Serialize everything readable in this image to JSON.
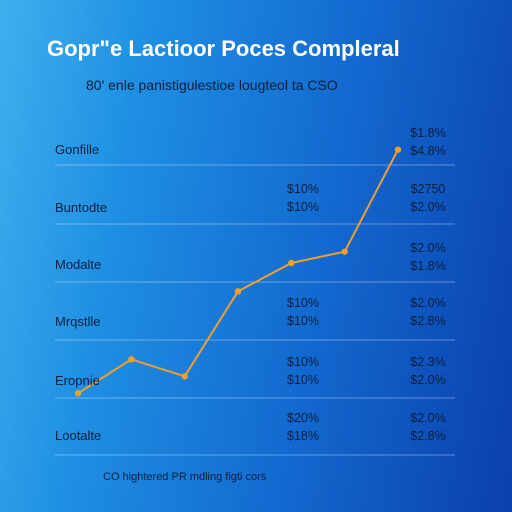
{
  "chart_data": {
    "type": "line",
    "title": "Gopr\"e Lactioor Poces Compleral",
    "subtitle": "80' enle panistigulestioe lougteol ta CSO",
    "footnote": "CO hightered PR mdling figti cors",
    "row_labels": [
      "Gonfille",
      "Buntodte",
      "Modalte",
      "Mrqstlle",
      "Eropnie",
      "Lootalte"
    ],
    "series": [
      {
        "color": "#f0a02a",
        "x": [
          0,
          1,
          2,
          3,
          4,
          5,
          6
        ],
        "y": [
          1.0,
          1.6,
          1.3,
          2.8,
          3.3,
          3.5,
          5.3
        ]
      }
    ],
    "ylim": [
      0,
      6
    ],
    "grid": true,
    "value_labels": {
      "middle_column": [
        [
          "$10%",
          "$10%"
        ],
        [
          "$10%",
          "$10%"
        ],
        [
          "$10%",
          "$10%"
        ],
        [
          "$20%",
          "$18%"
        ]
      ],
      "right_column": [
        [
          "$1.8%",
          "$4.8%"
        ],
        [
          "$2750",
          "$2.0%"
        ],
        [
          "$2.0%",
          "$1.8%"
        ],
        [
          "$2.0%",
          "$2.8%"
        ],
        [
          "$2.3%",
          "$2.0%"
        ],
        [
          "$2.0%",
          "$2.8%"
        ]
      ]
    }
  }
}
